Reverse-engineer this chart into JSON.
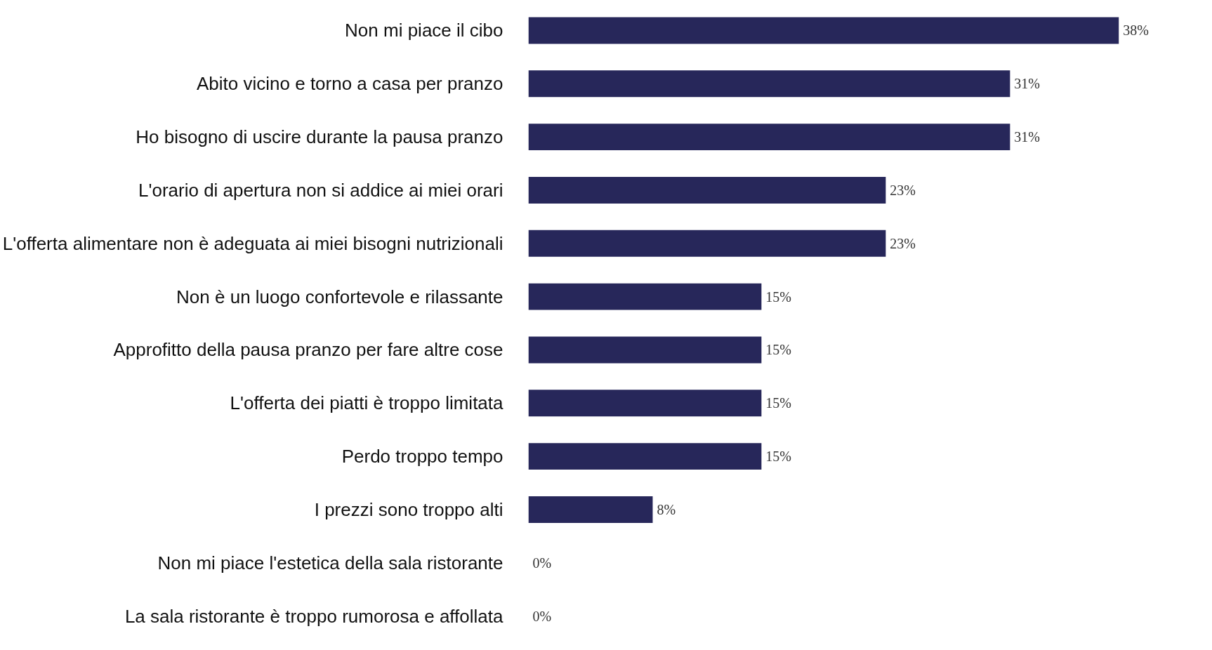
{
  "chart_data": {
    "type": "bar",
    "orientation": "horizontal",
    "categories": [
      "Non mi piace il cibo",
      "Abito vicino e torno a casa per pranzo",
      "Ho bisogno di uscire durante la pausa pranzo",
      "L'orario di apertura non si addice ai miei orari",
      "L'offerta alimentare non è adeguata ai miei bisogni nutrizionali",
      "Non è un luogo confortevole e rilassante",
      "Approfitto della pausa pranzo per fare altre cose",
      "L'offerta dei piatti è troppo limitata",
      "Perdo troppo tempo",
      "I prezzi sono troppo alti",
      "Non mi piace l'estetica della sala ristorante",
      "La sala ristorante è troppo rumorosa e affollata"
    ],
    "values": [
      38,
      31,
      31,
      23,
      23,
      15,
      15,
      15,
      15,
      8,
      0,
      0
    ],
    "value_labels": [
      "38%",
      "31%",
      "31%",
      "23%",
      "23%",
      "15%",
      "15%",
      "15%",
      "15%",
      "8%",
      "0%",
      "0%"
    ],
    "color": "#27275a",
    "grid": false,
    "tick_labels": "y"
  }
}
